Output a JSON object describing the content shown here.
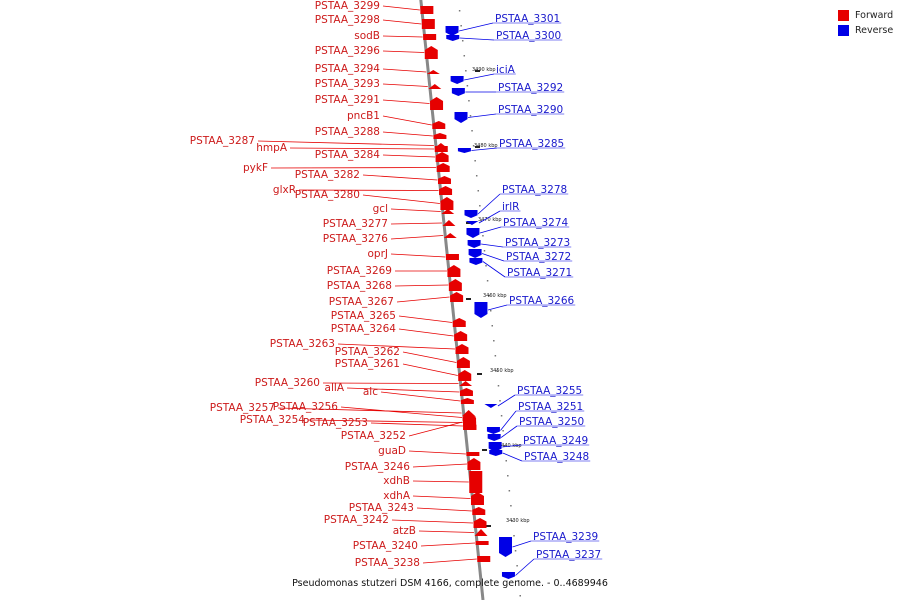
{
  "legend": {
    "forward_label": "Forward",
    "reverse_label": "Reverse",
    "forward_color": "#e60000",
    "reverse_color": "#0000e6"
  },
  "caption": "Pseudomonas stutzeri DSM 4166, complete genome. - 0..4689946",
  "genes": {
    "forward": [
      "PSTAA_3299",
      "PSTAA_3298",
      "sodB",
      "PSTAA_3296",
      "PSTAA_3294",
      "PSTAA_3293",
      "PSTAA_3291",
      "pncB1",
      "PSTAA_3288",
      "PSTAA_3287",
      "hmpA",
      "PSTAA_3284",
      "pykF",
      "PSTAA_3282",
      "glxR",
      "PSTAA_3280",
      "gcl",
      "PSTAA_3277",
      "PSTAA_3276",
      "oprJ",
      "PSTAA_3269",
      "PSTAA_3268",
      "PSTAA_3267",
      "PSTAA_3265",
      "PSTAA_3264",
      "PSTAA_3263",
      "PSTAA_3262",
      "PSTAA_3261",
      "PSTAA_3260",
      "allA",
      "alc",
      "PSTAA_3257",
      "PSTAA_3256",
      "PSTAA_3254",
      "PSTAA_3253",
      "PSTAA_3252",
      "guaD",
      "PSTAA_3246",
      "xdhB",
      "xdhA",
      "PSTAA_3243",
      "PSTAA_3242",
      "atzB",
      "PSTAA_3240",
      "PSTAA_3238"
    ],
    "reverse": [
      "PSTAA_3301",
      "PSTAA_3300",
      "iciA",
      "PSTAA_3292",
      "PSTAA_3290",
      "PSTAA_3285",
      "PSTAA_3278",
      "irlR",
      "PSTAA_3274",
      "PSTAA_3273",
      "PSTAA_3272",
      "PSTAA_3271",
      "PSTAA_3266",
      "PSTAA_3255",
      "PSTAA_3251",
      "PSTAA_3250",
      "PSTAA_3249",
      "PSTAA_3248",
      "PSTAA_3239",
      "PSTAA_3237"
    ]
  },
  "ticks": [
    "3490 kbp",
    "3480 kbp",
    "3470 kbp",
    "3460 kbp",
    "3450 kbp",
    "3440 kbp",
    "3430 kbp"
  ]
}
